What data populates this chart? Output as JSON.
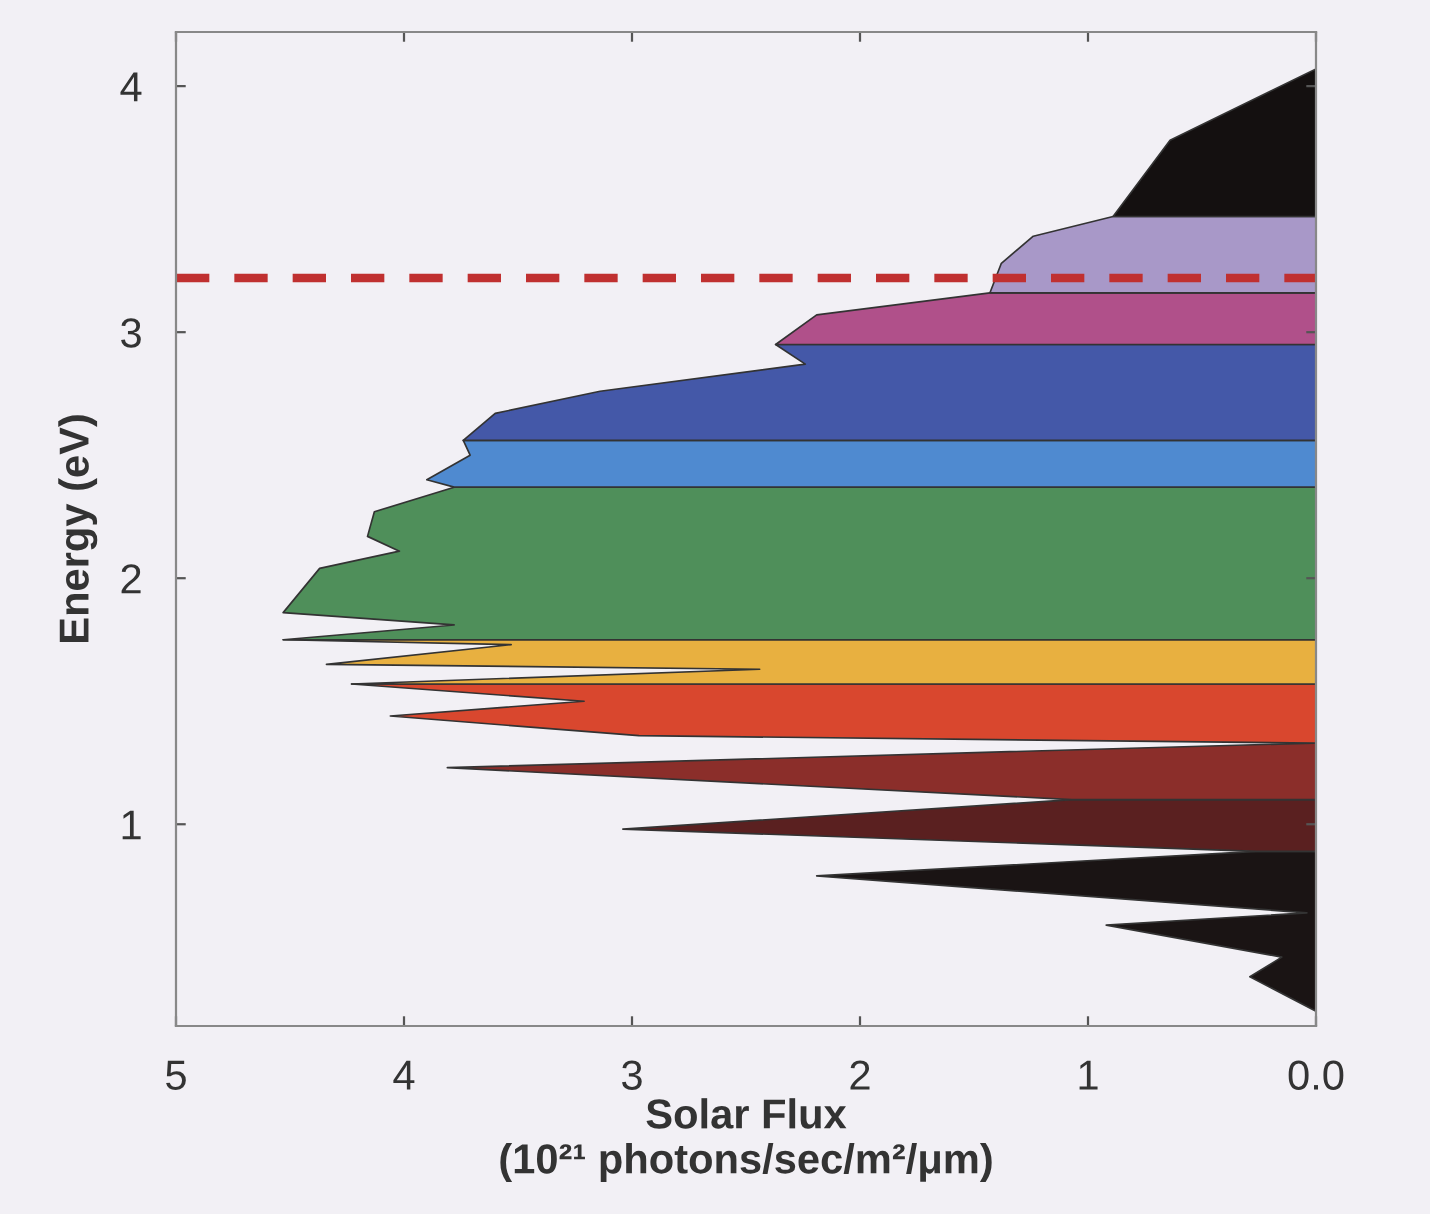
{
  "chart_data": {
    "type": "area",
    "orientation": "horizontal",
    "xlabel": "Solar Flux\n(10²¹ photons/sec/m²/μm)",
    "ylabel": "Energy (eV)",
    "xlim": [
      5,
      0
    ],
    "ylim": [
      0.18,
      4.22
    ],
    "xticks": [
      5,
      4,
      3,
      2,
      1,
      {
        "value": 0,
        "label": "0.0"
      }
    ],
    "yticks": [
      1,
      2,
      3,
      4
    ],
    "grid": false,
    "legend": false,
    "ref_lines": [
      {
        "axis": "y",
        "value": 3.22,
        "color": "#c03030",
        "line_style": "dashed"
      }
    ],
    "series": [
      {
        "color": "#1a1414",
        "x": [
          0.24,
          0.38,
          0.46,
          0.59,
          0.64,
          0.79,
          0.89
        ],
        "values": [
          0,
          0.29,
          0.15,
          0.92,
          0.04,
          2.19,
          0.26
        ]
      },
      {
        "color": "#5a2020",
        "x": [
          0.89,
          0.98,
          1.1
        ],
        "values": [
          0.26,
          3.04,
          1.07
        ]
      },
      {
        "color": "#8b2e2a",
        "x": [
          1.1,
          1.23,
          1.33
        ],
        "values": [
          1.07,
          3.81,
          0.01
        ]
      },
      {
        "color": "#d9472e",
        "x": [
          1.33,
          1.36,
          1.44,
          1.5,
          1.57
        ],
        "values": [
          0.01,
          2.97,
          4.06,
          3.21,
          4.23
        ]
      },
      {
        "color": "#e8b040",
        "x": [
          1.57,
          1.63,
          1.65,
          1.73,
          1.75
        ],
        "values": [
          4.23,
          2.44,
          4.34,
          3.53,
          4.53
        ]
      },
      {
        "color": "#4f8f5a",
        "x": [
          1.75,
          1.81,
          1.86,
          2.04,
          2.11,
          2.17,
          2.27,
          2.37
        ],
        "values": [
          4.53,
          3.78,
          4.53,
          4.37,
          4.02,
          4.16,
          4.13,
          3.78
        ]
      },
      {
        "color": "#4f8ad0",
        "x": [
          2.37,
          2.4,
          2.5,
          2.56
        ],
        "values": [
          3.78,
          3.9,
          3.71,
          3.74
        ]
      },
      {
        "color": "#4458a8",
        "x": [
          2.56,
          2.67,
          2.76,
          2.87,
          2.95
        ],
        "values": [
          3.74,
          3.6,
          3.14,
          2.24,
          2.37
        ]
      },
      {
        "color": "#b0508a",
        "x": [
          2.95,
          3.07,
          3.16
        ],
        "values": [
          2.37,
          2.19,
          1.43
        ]
      },
      {
        "color": "#a898c8",
        "x": [
          3.16,
          3.28,
          3.39,
          3.47
        ],
        "values": [
          1.43,
          1.38,
          1.24,
          0.89
        ]
      },
      {
        "color": "#141010",
        "x": [
          3.47,
          3.78,
          4.07
        ],
        "values": [
          0.89,
          0.64,
          0
        ]
      }
    ]
  }
}
